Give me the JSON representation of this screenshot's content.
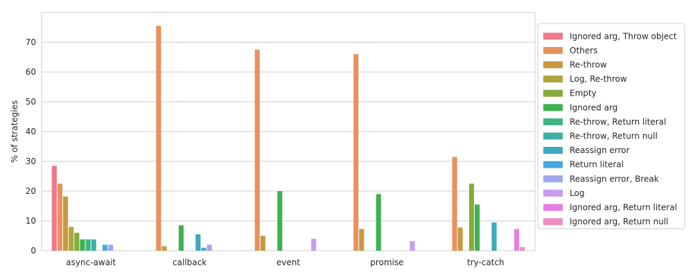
{
  "chart_data": {
    "type": "bar",
    "ylabel": "% of strategies",
    "xlabel": "",
    "ylim": [
      0,
      80
    ],
    "yticks": [
      0,
      10,
      20,
      30,
      40,
      50,
      60,
      70
    ],
    "grid": "horizontal",
    "legend_position": "right",
    "categories": [
      "async-await",
      "callback",
      "event",
      "promise",
      "try-catch"
    ],
    "series": [
      {
        "name": "Ignored arg, Throw object",
        "color": "#f0788a",
        "values": [
          28.5,
          0,
          0,
          0,
          0
        ]
      },
      {
        "name": "Others",
        "color": "#e8915e",
        "values": [
          22.5,
          75.5,
          67.5,
          66,
          31.5
        ]
      },
      {
        "name": "Re-throw",
        "color": "#c79a42",
        "values": [
          18.2,
          1.5,
          5,
          7.3,
          7.8
        ]
      },
      {
        "name": "Log, Re-throw",
        "color": "#aea53c",
        "values": [
          8,
          0,
          0,
          0,
          0
        ]
      },
      {
        "name": "Empty",
        "color": "#86ab3a",
        "values": [
          6,
          0,
          0,
          0,
          22.5
        ]
      },
      {
        "name": "Ignored arg",
        "color": "#3fb150",
        "values": [
          3.8,
          8.5,
          20,
          19,
          15.5
        ]
      },
      {
        "name": "Re-throw, Return literal",
        "color": "#3bb684",
        "values": [
          3.8,
          0,
          0,
          0,
          0
        ]
      },
      {
        "name": "Re-throw, Return null",
        "color": "#3bb1a4",
        "values": [
          3.8,
          0,
          0,
          0,
          0
        ]
      },
      {
        "name": "Reassign error",
        "color": "#3cabbb",
        "values": [
          0,
          5.5,
          0,
          0,
          9.5
        ]
      },
      {
        "name": "Return literal",
        "color": "#47a9e0",
        "values": [
          2,
          1,
          0,
          0,
          0
        ]
      },
      {
        "name": "Reassign error, Break",
        "color": "#9fa8ec",
        "values": [
          2,
          2,
          0,
          0,
          0
        ]
      },
      {
        "name": "Log",
        "color": "#c69df0",
        "values": [
          0,
          0,
          4,
          3.2,
          0
        ]
      },
      {
        "name": "Ignored arg, Return literal",
        "color": "#e77fe6",
        "values": [
          0,
          0,
          0,
          0,
          7.3
        ]
      },
      {
        "name": "Ignored arg, Return null",
        "color": "#ee8dc1",
        "values": [
          0,
          0,
          0,
          0,
          1.2
        ]
      }
    ]
  }
}
